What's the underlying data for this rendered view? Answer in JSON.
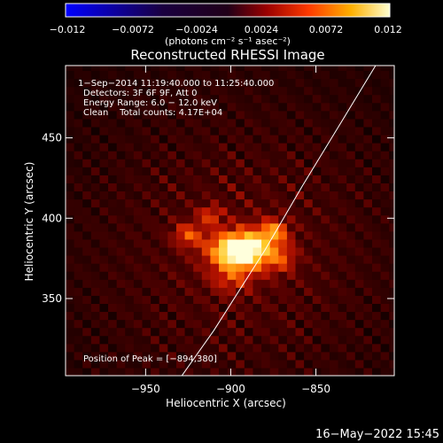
{
  "colorbar": {
    "ticks": [
      "−0.012",
      "−0.0072",
      "−0.0024",
      "0.0024",
      "0.0072",
      "0.012"
    ],
    "units": "(photons cm⁻² s⁻¹ asec⁻²)",
    "range": [
      -0.012,
      0.012
    ]
  },
  "chart_data": {
    "type": "heatmap",
    "title": "Reconstructed RHESSI Image",
    "xlabel": "Heliocentric X (arcsec)",
    "ylabel": "Heliocentric Y (arcsec)",
    "xlim": [
      -997,
      -804
    ],
    "ylim": [
      302,
      495
    ],
    "xticks": [
      -950,
      -900,
      -850
    ],
    "yticks": [
      350,
      400,
      450
    ],
    "xtick_labels": [
      "−950",
      "−900",
      "−850"
    ],
    "ytick_labels": [
      "350",
      "400",
      "450"
    ],
    "annotations": {
      "line1": "1−Sep−2014 11:19:40.000 to 11:25:40.000",
      "line2": "Detectors: 3F 6F 9F, Att 0",
      "line3": "Energy Range: 6.0 − 12.0 keV",
      "line4": "Clean    Total counts: 4.17E+04",
      "peak": "Position of Peak = [−894,380]"
    },
    "peak": {
      "x": -894,
      "y": 380
    },
    "source_blobs": [
      {
        "x": -894,
        "y": 380,
        "amp": 1.0,
        "sx": 12,
        "sy": 8
      },
      {
        "x": -875,
        "y": 392,
        "amp": 0.45,
        "sx": 6,
        "sy": 5
      },
      {
        "x": -925,
        "y": 390,
        "amp": 0.35,
        "sx": 6,
        "sy": 5
      },
      {
        "x": -912,
        "y": 402,
        "amp": 0.3,
        "sx": 5,
        "sy": 4
      },
      {
        "x": -870,
        "y": 375,
        "amp": 0.25,
        "sx": 6,
        "sy": 6
      },
      {
        "x": -900,
        "y": 362,
        "amp": 0.22,
        "sx": 8,
        "sy": 6
      }
    ],
    "limb": [
      [
        -950,
        270
      ],
      [
        -910,
        330
      ],
      [
        -880,
        380
      ],
      [
        -858,
        420
      ],
      [
        -835,
        460
      ],
      [
        -815,
        495
      ],
      [
        -796,
        530
      ]
    ]
  },
  "footer": {
    "timestamp": "16−May−2022 15:45"
  }
}
